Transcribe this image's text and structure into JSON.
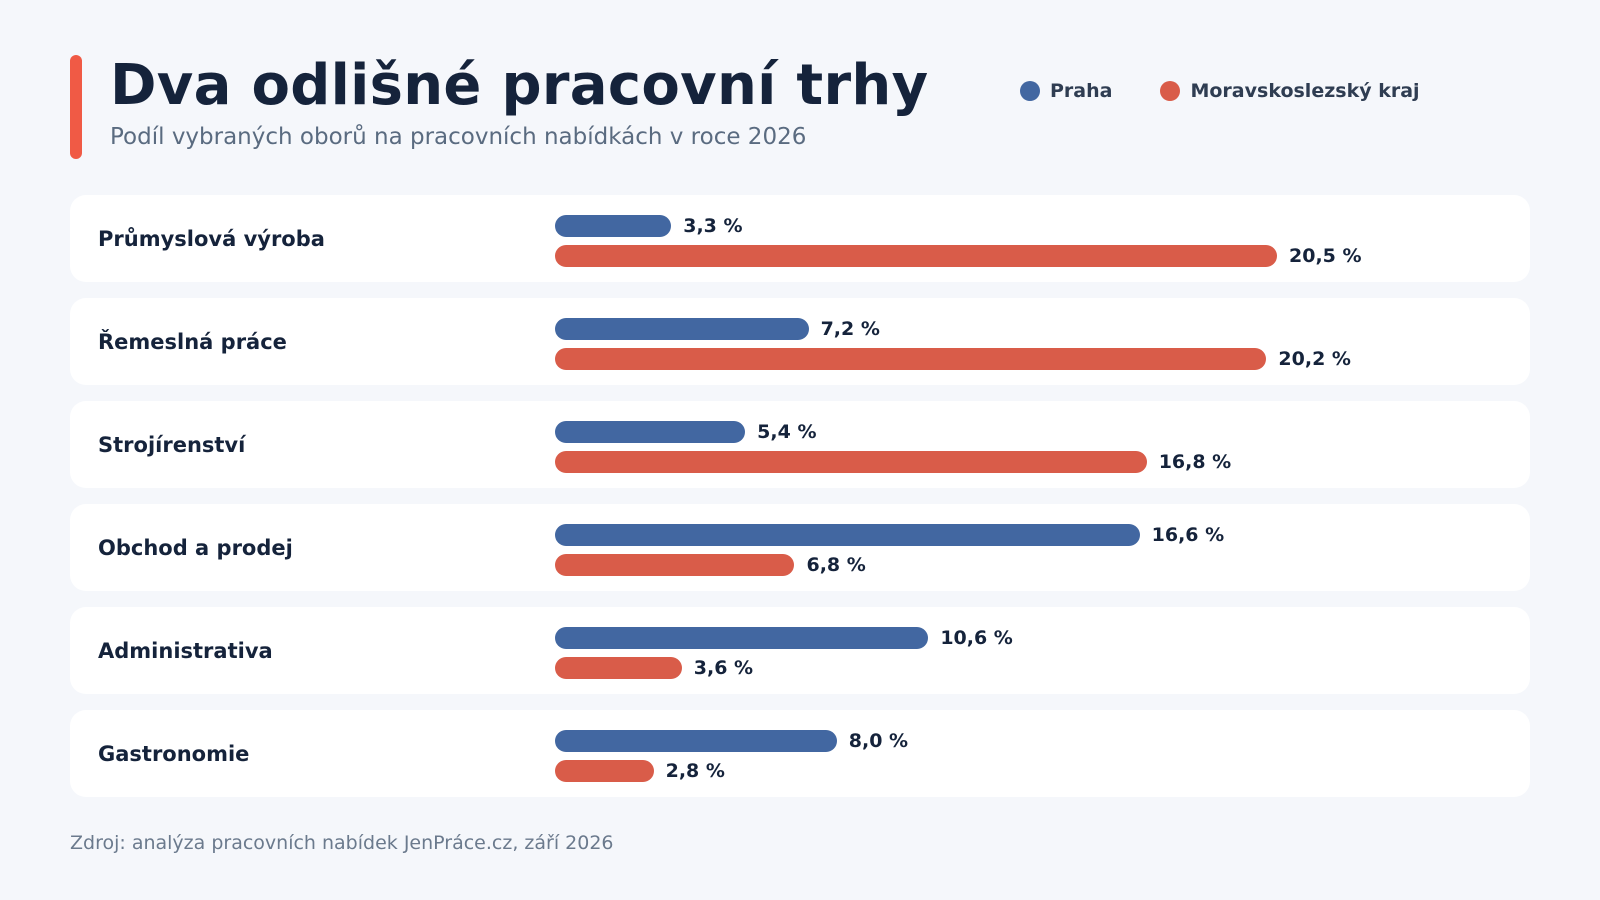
{
  "header": {
    "title": "Dva odlišné pracovní trhy",
    "subtitle": "Podíl vybraných oborů na pracovních nabídkách v roce 2026"
  },
  "colors": {
    "accent": "#f05a45",
    "praha": "#4267a1",
    "moravskoslezsky": "#d95c49",
    "row_background": "#ffffff",
    "page_background": "#f5f7fb"
  },
  "footer": {
    "source": "Zdroj: analýza pracovních nabídek JenPráce.cz, září 2026"
  },
  "chart_data": {
    "type": "bar",
    "orientation": "horizontal",
    "title": "Dva odlišné pracovní trhy",
    "subtitle": "Podíl vybraných oborů na pracovních nabídkách v roce 2026",
    "unit": "%",
    "legend_position": "top-right",
    "grid": false,
    "xlim": [
      0,
      22
    ],
    "categories": [
      "Průmyslová výroba",
      "Řemeslná práce",
      "Strojírenství",
      "Obchod a prodej",
      "Administrativa",
      "Gastronomie"
    ],
    "series": [
      {
        "name": "Praha",
        "values": [
          3.3,
          7.2,
          5.4,
          16.6,
          10.6,
          8.0
        ],
        "labels": [
          "3,3 %",
          "7,2 %",
          "5,4 %",
          "16,6 %",
          "10,6 %",
          "8,0 %"
        ]
      },
      {
        "name": "Moravskoslezský kraj",
        "values": [
          20.5,
          20.2,
          16.8,
          6.8,
          3.6,
          2.8
        ],
        "labels": [
          "20,5 %",
          "20,2 %",
          "16,8 %",
          "6,8 %",
          "3,6 %",
          "2,8 %"
        ]
      }
    ]
  }
}
